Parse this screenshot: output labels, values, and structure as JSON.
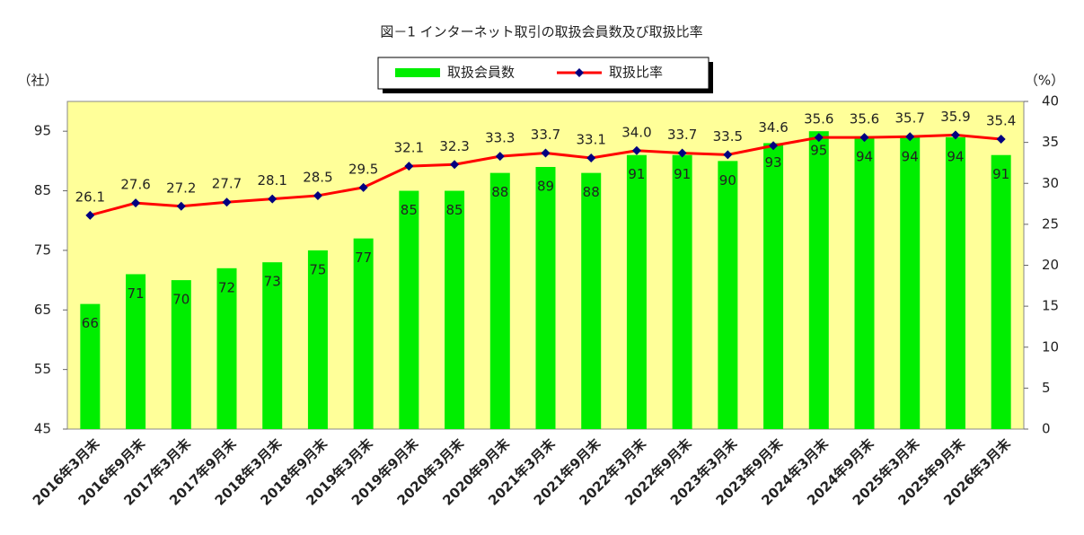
{
  "chart_data": {
    "type": "bar-line",
    "title": "図－1 インターネット取引の取扱会員数及び取扱比率",
    "y_label": "（社）",
    "y2_label": "（%）",
    "categories": [
      "2016年3月末",
      "2016年9月末",
      "2017年3月末",
      "2017年9月末",
      "2018年3月末",
      "2018年9月末",
      "2019年3月末",
      "2019年9月末",
      "2020年3月末",
      "2020年9月末",
      "2021年3月末",
      "2021年9月末",
      "2022年3月末",
      "2022年9月末",
      "2023年3月末",
      "2023年9月末",
      "2024年3月末",
      "2024年9月末",
      "2025年3月末",
      "2025年9月末",
      "2026年3月末"
    ],
    "series": [
      {
        "name": "取扱会員数",
        "type": "bar",
        "color": "#00ee00",
        "values": [
          66,
          71,
          70,
          72,
          73,
          75,
          77,
          85,
          85,
          88,
          89,
          88,
          91,
          91,
          90,
          93,
          95,
          94,
          94,
          94,
          91
        ]
      },
      {
        "name": "取扱比率",
        "type": "line",
        "axis": "y2",
        "color": "#ff0000",
        "marker_color": "#000080",
        "values": [
          26.1,
          27.6,
          27.2,
          27.7,
          28.1,
          28.5,
          29.5,
          32.1,
          32.3,
          33.3,
          33.7,
          33.1,
          34.0,
          33.7,
          33.5,
          34.6,
          35.6,
          35.6,
          35.7,
          35.9,
          35.4
        ],
        "value_labels": [
          "26.1",
          "27.6",
          "27.2",
          "27.7",
          "28.1",
          "28.5",
          "29.5",
          "32.1",
          "32.3",
          "33.3",
          "33.7",
          "33.1",
          "34.0",
          "33.7",
          "33.5",
          "34.6",
          "35.6",
          "35.6",
          "35.7",
          "35.9",
          "35.4"
        ]
      }
    ],
    "ylim": [
      45,
      100
    ],
    "yticks": [
      45,
      55,
      65,
      75,
      85,
      95
    ],
    "y2lim": [
      0,
      40
    ],
    "y2ticks": [
      0,
      5,
      10,
      15,
      20,
      25,
      30,
      35,
      40
    ],
    "background": "#ffff99"
  }
}
